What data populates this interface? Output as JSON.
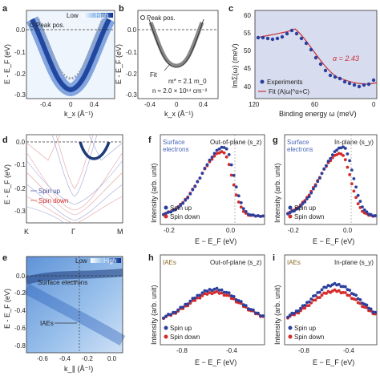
{
  "panels": {
    "a": {
      "label": "a",
      "legend_low": "Low",
      "legend_high": "High",
      "peak_label": "Peak pos.",
      "ylabel": "E - E_F (eV)",
      "xlabel": "k_x (Å⁻¹)",
      "xticks": [
        "-0.4",
        "0",
        "0.4"
      ],
      "yticks": [
        "0.0",
        "-0.1",
        "-0.2",
        "-0.3"
      ]
    },
    "b": {
      "label": "b",
      "peak_label": "Peak pos.",
      "fit_label": "Fit",
      "mass_text": "m* ≈ 2.1 m_0",
      "density_text": "n ≈ 2.0 × 10¹⁴ cm⁻²",
      "ylabel": "E - E_F (eV)",
      "xlabel": "k_x (Å⁻¹)",
      "xticks": [
        "-0.4",
        "0",
        "0.4"
      ],
      "yticks": [
        "0.0",
        "-0.1",
        "-0.2",
        "-0.3"
      ]
    },
    "c": {
      "label": "c",
      "ylabel": "ImΣ(ω) (meV)",
      "xlabel": "Binding energy ω (meV)",
      "alpha_text": "α = 2.43",
      "legend": [
        "Experiments",
        "Fit (A|ω|^α+C)"
      ],
      "xticks": [
        "120",
        "60",
        "0"
      ],
      "yticks": [
        "40",
        "45",
        "50",
        "55",
        "60"
      ]
    },
    "d": {
      "label": "d",
      "ylabel": "E - E_F (eV)",
      "xticks": [
        "K",
        "Γ",
        "M"
      ],
      "yticks": [
        "0.0",
        "-0.1",
        "-0.2",
        "-0.3"
      ],
      "legend": [
        "Spin up",
        "Spin down"
      ]
    },
    "e": {
      "label": "e",
      "legend_low": "Low",
      "legend_high": "High",
      "surface_text": "Surface electrons",
      "iaes_text": "IAEs",
      "ylabel": "E - E_F (eV)",
      "xlabel": "k_∥ (Å⁻¹)",
      "xticks": [
        "-0.6",
        "-0.4",
        "-0.2",
        "0.0"
      ],
      "yticks": [
        "0.0",
        "-0.2",
        "-0.4",
        "-0.6",
        "-0.8"
      ]
    },
    "f": {
      "label": "f",
      "tag1": "Surface",
      "tag2": "electrons",
      "title": "Out-of-plane (s_z)",
      "ylabel": "Intensity (arb. unit)",
      "xlabel": "E − E_F (eV)",
      "xticks": [
        "-0.2",
        "0.0"
      ],
      "legend": [
        "Spin up",
        "Spin down"
      ]
    },
    "g": {
      "label": "g",
      "tag1": "Surface",
      "tag2": "electrons",
      "title": "In-plane (s_y)",
      "ylabel": "Intensity (arb. unit)",
      "xlabel": "E − E_F (eV)",
      "xticks": [
        "-0.2",
        "0.0"
      ],
      "legend": [
        "Spin up",
        "Spin down"
      ]
    },
    "h": {
      "label": "h",
      "tag1": "IAEs",
      "title": "Out-of-plane (s_z)",
      "ylabel": "Intensity (arb. unit)",
      "xlabel": "E − E_F (eV)",
      "xticks": [
        "-0.8",
        "-0.4"
      ],
      "legend": [
        "Spin up",
        "Spin down"
      ]
    },
    "i": {
      "label": "i",
      "tag1": "IAEs",
      "title": "In-plane (s_y)",
      "ylabel": "Intensity (arb. unit)",
      "xlabel": "E − E_F (eV)",
      "xticks": [
        "-0.8",
        "-0.4"
      ],
      "legend": [
        "Spin up",
        "Spin down"
      ]
    }
  },
  "colors": {
    "spin_up": "#2a3f9e",
    "spin_down": "#d42a2a",
    "fit": "#c8323c",
    "tag": "#4a67b8",
    "iae_tag": "#8a6a2a"
  }
}
